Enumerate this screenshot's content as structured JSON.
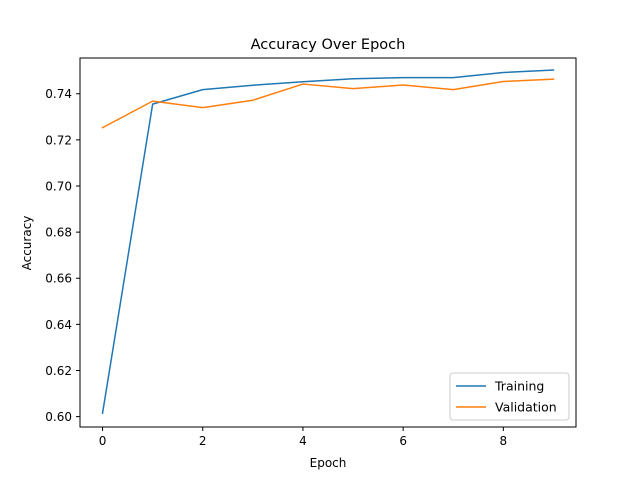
{
  "chart_data": {
    "type": "line",
    "title": "Accuracy Over Epoch",
    "xlabel": "Epoch",
    "ylabel": "Accuracy",
    "xlim": [
      -0.45,
      9.45
    ],
    "ylim": [
      0.5955,
      0.7555
    ],
    "xticks": [
      0,
      2,
      4,
      6,
      8
    ],
    "xtick_labels": [
      "0",
      "2",
      "4",
      "6",
      "8"
    ],
    "yticks": [
      0.6,
      0.62,
      0.64,
      0.66,
      0.68,
      0.7,
      0.72,
      0.74
    ],
    "ytick_labels": [
      "0.60",
      "0.62",
      "0.64",
      "0.66",
      "0.68",
      "0.70",
      "0.72",
      "0.74"
    ],
    "grid": false,
    "legend_position": "lower-right",
    "x": [
      0,
      1,
      2,
      3,
      4,
      5,
      6,
      7,
      8,
      9
    ],
    "series": [
      {
        "name": "Training",
        "color": "#1f77b4",
        "values": [
          0.6015,
          0.7355,
          0.7418,
          0.7437,
          0.7452,
          0.7465,
          0.747,
          0.747,
          0.7492,
          0.7503
        ]
      },
      {
        "name": "Validation",
        "color": "#ff7f0e",
        "values": [
          0.7253,
          0.7368,
          0.734,
          0.7372,
          0.7442,
          0.7422,
          0.7438,
          0.7418,
          0.7453,
          0.7463
        ]
      }
    ]
  }
}
